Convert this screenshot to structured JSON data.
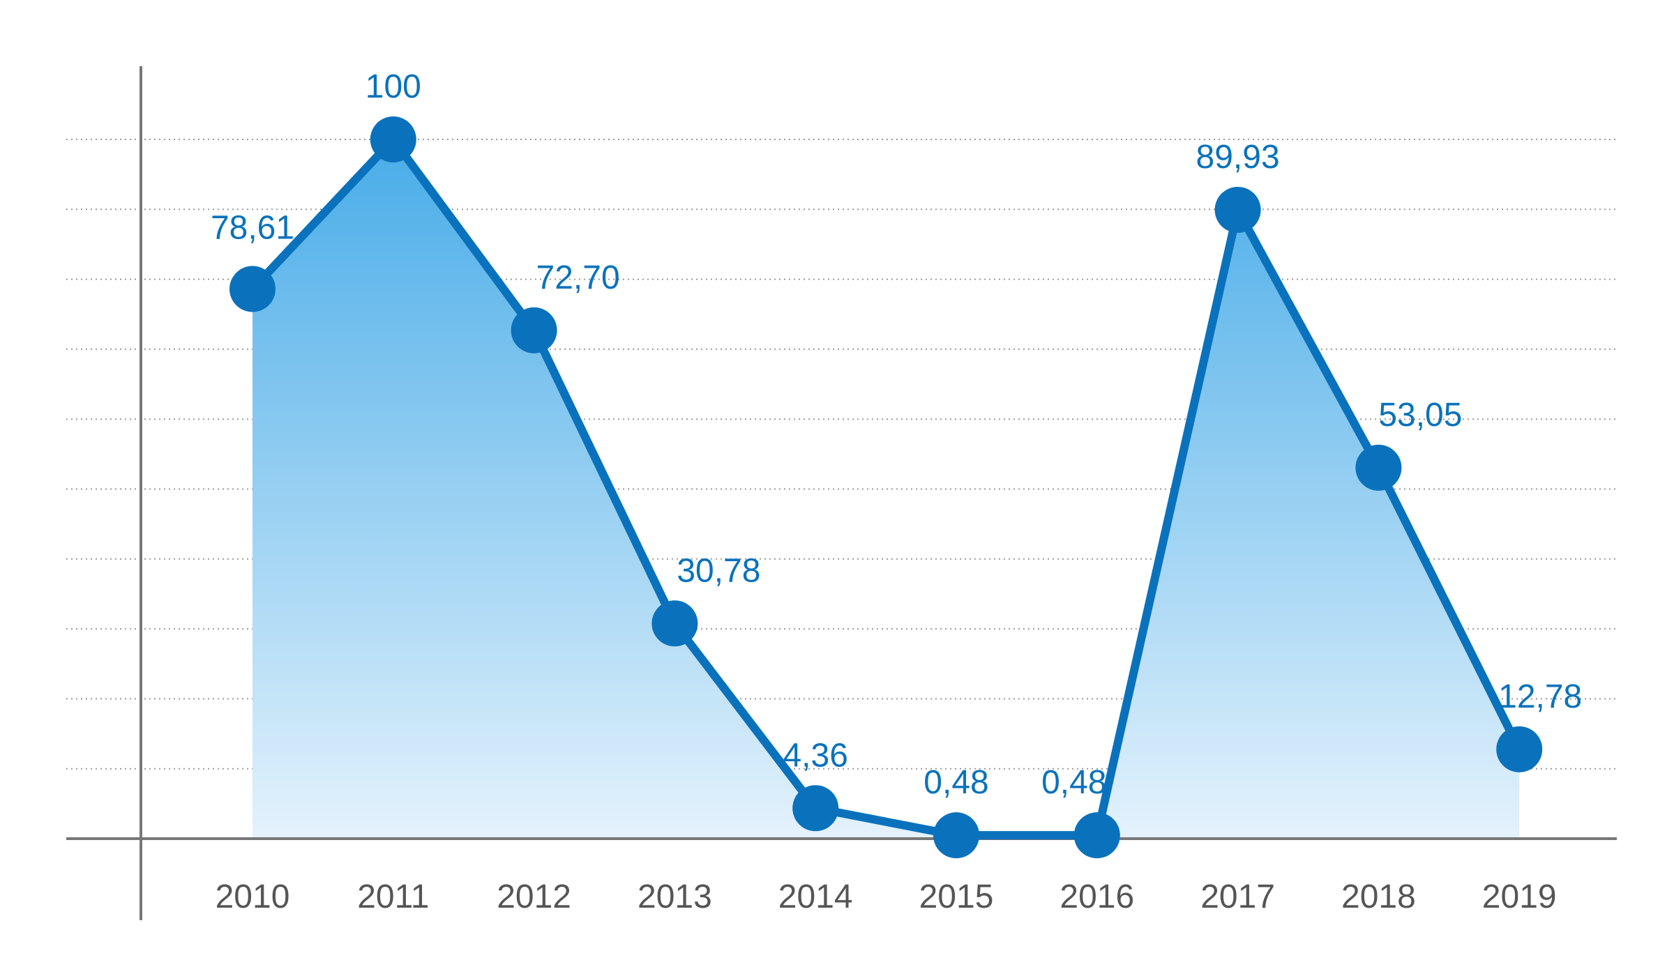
{
  "chart_data": {
    "type": "area",
    "title": "",
    "xlabel": "",
    "ylabel": "",
    "categories": [
      "2010",
      "2011",
      "2012",
      "2013",
      "2014",
      "2015",
      "2016",
      "2017",
      "2018",
      "2019"
    ],
    "series": [
      {
        "values": [
          78.61,
          100,
          72.7,
          30.78,
          4.36,
          0.48,
          0.48,
          89.93,
          53.05,
          12.78
        ],
        "value_labels": [
          "78,61",
          "100",
          "72,70",
          "30,78",
          "4,36",
          "0,48",
          "0,48",
          "89,93",
          "53,05",
          "12,78"
        ]
      }
    ],
    "ylim": [
      0,
      110
    ],
    "y_gridlines": [
      10,
      20,
      30,
      40,
      50,
      60,
      70,
      80,
      90,
      100
    ],
    "grid": true,
    "grid_style": "dotted horizontal",
    "legend": "none",
    "colors": {
      "line": "#0a72bc",
      "marker": "#0a72bc",
      "fill_top": "#48ace8",
      "fill_bottom": "#e4f2fc",
      "axis": "#777777",
      "grid": "#9a9a9a",
      "tick_text": "#555555",
      "label_text": "#0a72bc"
    }
  }
}
